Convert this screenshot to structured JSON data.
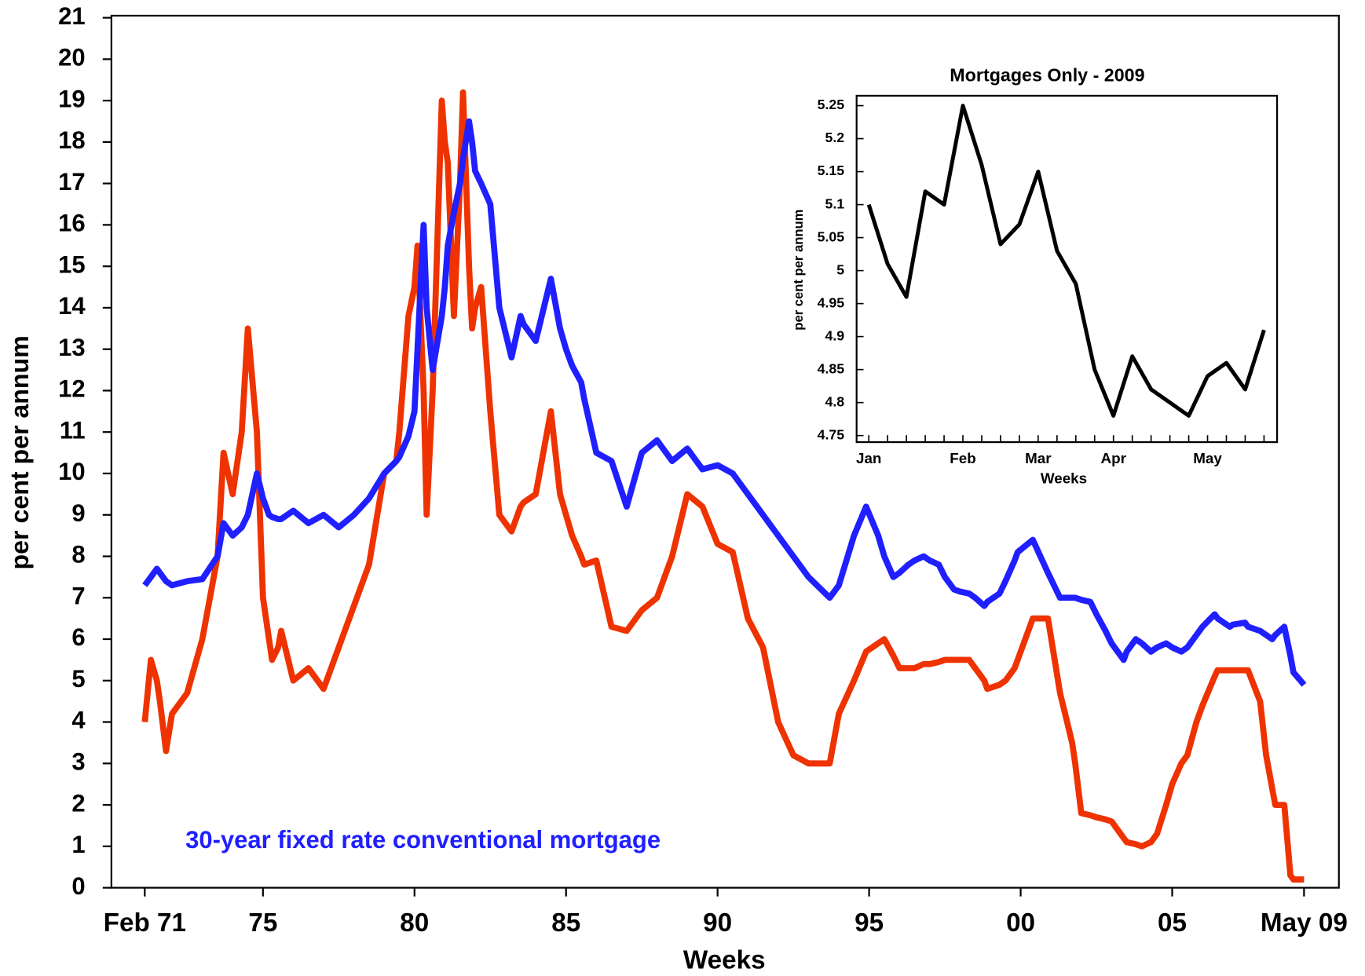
{
  "chart_data": [
    {
      "type": "line",
      "ylabel": "per cent per annum",
      "xlabel": "Weeks",
      "x": [
        1971.1,
        1971.3,
        1971.5,
        1971.6,
        1971.8,
        1972,
        1972.5,
        1973,
        1973.5,
        1973.7,
        1974,
        1974.3,
        1974.5,
        1974.8,
        1975,
        1975.2,
        1975.3,
        1975.5,
        1975.6,
        1976,
        1976.5,
        1977,
        1977.5,
        1978,
        1978.5,
        1979,
        1979.4,
        1979.5,
        1979.8,
        1980,
        1980.1,
        1980.3,
        1980.4,
        1980.6,
        1980.9,
        1981,
        1981.1,
        1981.3,
        1981.5,
        1981.6,
        1981.8,
        1981.9,
        1982,
        1982.2,
        1982.5,
        1982.8,
        1983.2,
        1983.5,
        1983.6,
        1984,
        1984.5,
        1984.8,
        1985,
        1985.2,
        1985.5,
        1985.6,
        1986,
        1986.5,
        1987,
        1987.5,
        1988,
        1988.5,
        1989,
        1989.5,
        1990,
        1990.5,
        1991,
        1991.5,
        1992,
        1992.5,
        1993,
        1993.7,
        1994,
        1994.5,
        1994.9,
        1995.3,
        1995.5,
        1995.8,
        1996,
        1996.3,
        1996.5,
        1996.8,
        1997,
        1997.3,
        1997.5,
        1997.8,
        1998,
        1998.3,
        1998.5,
        1998.8,
        1998.9,
        1999.3,
        1999.5,
        1999.8,
        1999.9,
        2000.4,
        2000.9,
        2001.3,
        2001.7,
        2001.8,
        2002,
        2002.3,
        2002.5,
        2002.8,
        2003,
        2003.4,
        2003.5,
        2003.8,
        2004,
        2004.3,
        2004.5,
        2004.8,
        2005,
        2005.3,
        2005.5,
        2005.8,
        2006,
        2006.4,
        2006.5,
        2006.9,
        2007,
        2007.4,
        2007.5,
        2007.9,
        2008.1,
        2008.3,
        2008.4,
        2008.7,
        2008.9,
        2009.0,
        2009.35
      ],
      "series": [
        {
          "name": "30-year fixed rate conventional mortgage",
          "color": "#1f1fff",
          "values": [
            7.3,
            7.5,
            7.7,
            7.6,
            7.4,
            7.3,
            7.4,
            7.45,
            8.0,
            8.8,
            8.5,
            8.7,
            9.0,
            10.0,
            9.4,
            9.0,
            8.95,
            8.9,
            8.9,
            9.1,
            8.8,
            9.0,
            8.7,
            9.0,
            9.4,
            10.0,
            10.3,
            10.4,
            10.9,
            11.5,
            13.0,
            16.0,
            14.0,
            12.5,
            13.8,
            14.5,
            15.5,
            16.3,
            17.0,
            17.6,
            18.5,
            18.0,
            17.3,
            17.0,
            16.5,
            14.0,
            12.8,
            13.8,
            13.6,
            13.2,
            14.7,
            13.5,
            13.0,
            12.6,
            12.2,
            11.8,
            10.5,
            10.3,
            9.2,
            10.5,
            10.8,
            10.3,
            10.6,
            10.1,
            10.2,
            10.0,
            9.5,
            9.0,
            8.5,
            8.0,
            7.5,
            7.0,
            7.3,
            8.5,
            9.2,
            8.5,
            8.0,
            7.5,
            7.6,
            7.8,
            7.9,
            8.0,
            7.9,
            7.8,
            7.5,
            7.2,
            7.15,
            7.1,
            7.0,
            6.8,
            6.9,
            7.1,
            7.4,
            7.9,
            8.1,
            8.4,
            7.6,
            7.0,
            7.0,
            7.0,
            6.95,
            6.9,
            6.6,
            6.2,
            5.9,
            5.5,
            5.7,
            6.0,
            5.9,
            5.7,
            5.8,
            5.9,
            5.8,
            5.7,
            5.8,
            6.1,
            6.3,
            6.6,
            6.5,
            6.3,
            6.35,
            6.4,
            6.3,
            6.2,
            6.1,
            6.0,
            6.1,
            6.3,
            5.6,
            5.2,
            4.9
          ]
        },
        {
          "color": "#ee3300",
          "values": [
            4.0,
            5.5,
            5.0,
            4.5,
            3.3,
            4.2,
            4.7,
            6.0,
            8.0,
            10.5,
            9.5,
            11.0,
            13.5,
            11.0,
            7.0,
            6.0,
            5.5,
            5.8,
            6.2,
            5.0,
            5.3,
            4.8,
            5.8,
            6.8,
            7.8,
            10.0,
            10.3,
            11.0,
            13.8,
            14.5,
            15.5,
            12.0,
            9.0,
            12.0,
            19.0,
            18.0,
            17.5,
            13.8,
            17.0,
            19.2,
            15.0,
            13.5,
            14.0,
            14.5,
            11.5,
            9.0,
            8.6,
            9.2,
            9.3,
            9.5,
            11.5,
            9.5,
            9.0,
            8.5,
            8.0,
            7.8,
            7.9,
            6.3,
            6.2,
            6.7,
            7.0,
            8.0,
            9.5,
            9.2,
            8.3,
            8.1,
            6.5,
            5.8,
            4.0,
            3.2,
            3.0,
            3.0,
            4.2,
            5.0,
            5.7,
            5.9,
            6.0,
            5.6,
            5.3,
            5.3,
            5.3,
            5.4,
            5.4,
            5.45,
            5.5,
            5.5,
            5.5,
            5.5,
            5.3,
            5.0,
            4.8,
            4.9,
            5.0,
            5.3,
            5.5,
            6.5,
            6.5,
            4.7,
            3.5,
            3.0,
            1.8,
            1.75,
            1.7,
            1.65,
            1.6,
            1.2,
            1.1,
            1.05,
            1.0,
            1.1,
            1.3,
            2.0,
            2.5,
            3.0,
            3.2,
            4.0,
            4.4,
            5.1,
            5.25,
            5.25,
            5.25,
            5.25,
            5.25,
            4.5,
            3.2,
            2.4,
            2.0,
            2.0,
            0.3,
            0.2,
            0.2
          ]
        }
      ],
      "xlim": [
        1970,
        2010.5
      ],
      "xticks": [
        {
          "value": 1971.1,
          "label": "Feb 71"
        },
        {
          "value": 1975,
          "label": "75"
        },
        {
          "value": 1980,
          "label": "80"
        },
        {
          "value": 1985,
          "label": "85"
        },
        {
          "value": 1990,
          "label": "90"
        },
        {
          "value": 1995,
          "label": "95"
        },
        {
          "value": 2000,
          "label": "00"
        },
        {
          "value": 2005,
          "label": "05"
        },
        {
          "value": 2009.35,
          "label": "May 09"
        }
      ],
      "ylim": [
        0,
        21.05
      ],
      "yticks": [
        0,
        1,
        2,
        3,
        4,
        5,
        6,
        7,
        8,
        9,
        10,
        11,
        12,
        13,
        14,
        15,
        16,
        17,
        18,
        19,
        20,
        21
      ]
    },
    {
      "type": "line",
      "title": "Mortgages Only - 2009",
      "ylabel": "per cent per annum",
      "xlabel": "Weeks",
      "categories": [
        "Jan",
        null,
        null,
        null,
        null,
        "Feb",
        null,
        null,
        null,
        "Mar",
        null,
        null,
        null,
        "Apr",
        null,
        null,
        null,
        null,
        "May",
        null,
        null,
        null
      ],
      "series": [
        {
          "color": "#000000",
          "values": [
            5.1,
            5.01,
            4.96,
            5.12,
            5.1,
            5.25,
            5.16,
            5.04,
            5.07,
            5.15,
            5.03,
            4.98,
            4.85,
            4.78,
            4.87,
            4.82,
            4.8,
            4.78,
            4.84,
            4.86,
            4.82,
            4.91
          ]
        }
      ],
      "ylim": [
        4.74,
        5.265
      ],
      "yticks": [
        4.75,
        4.8,
        4.85,
        4.9,
        4.95,
        5,
        5.05,
        5.1,
        5.15,
        5.2,
        5.25
      ]
    }
  ]
}
